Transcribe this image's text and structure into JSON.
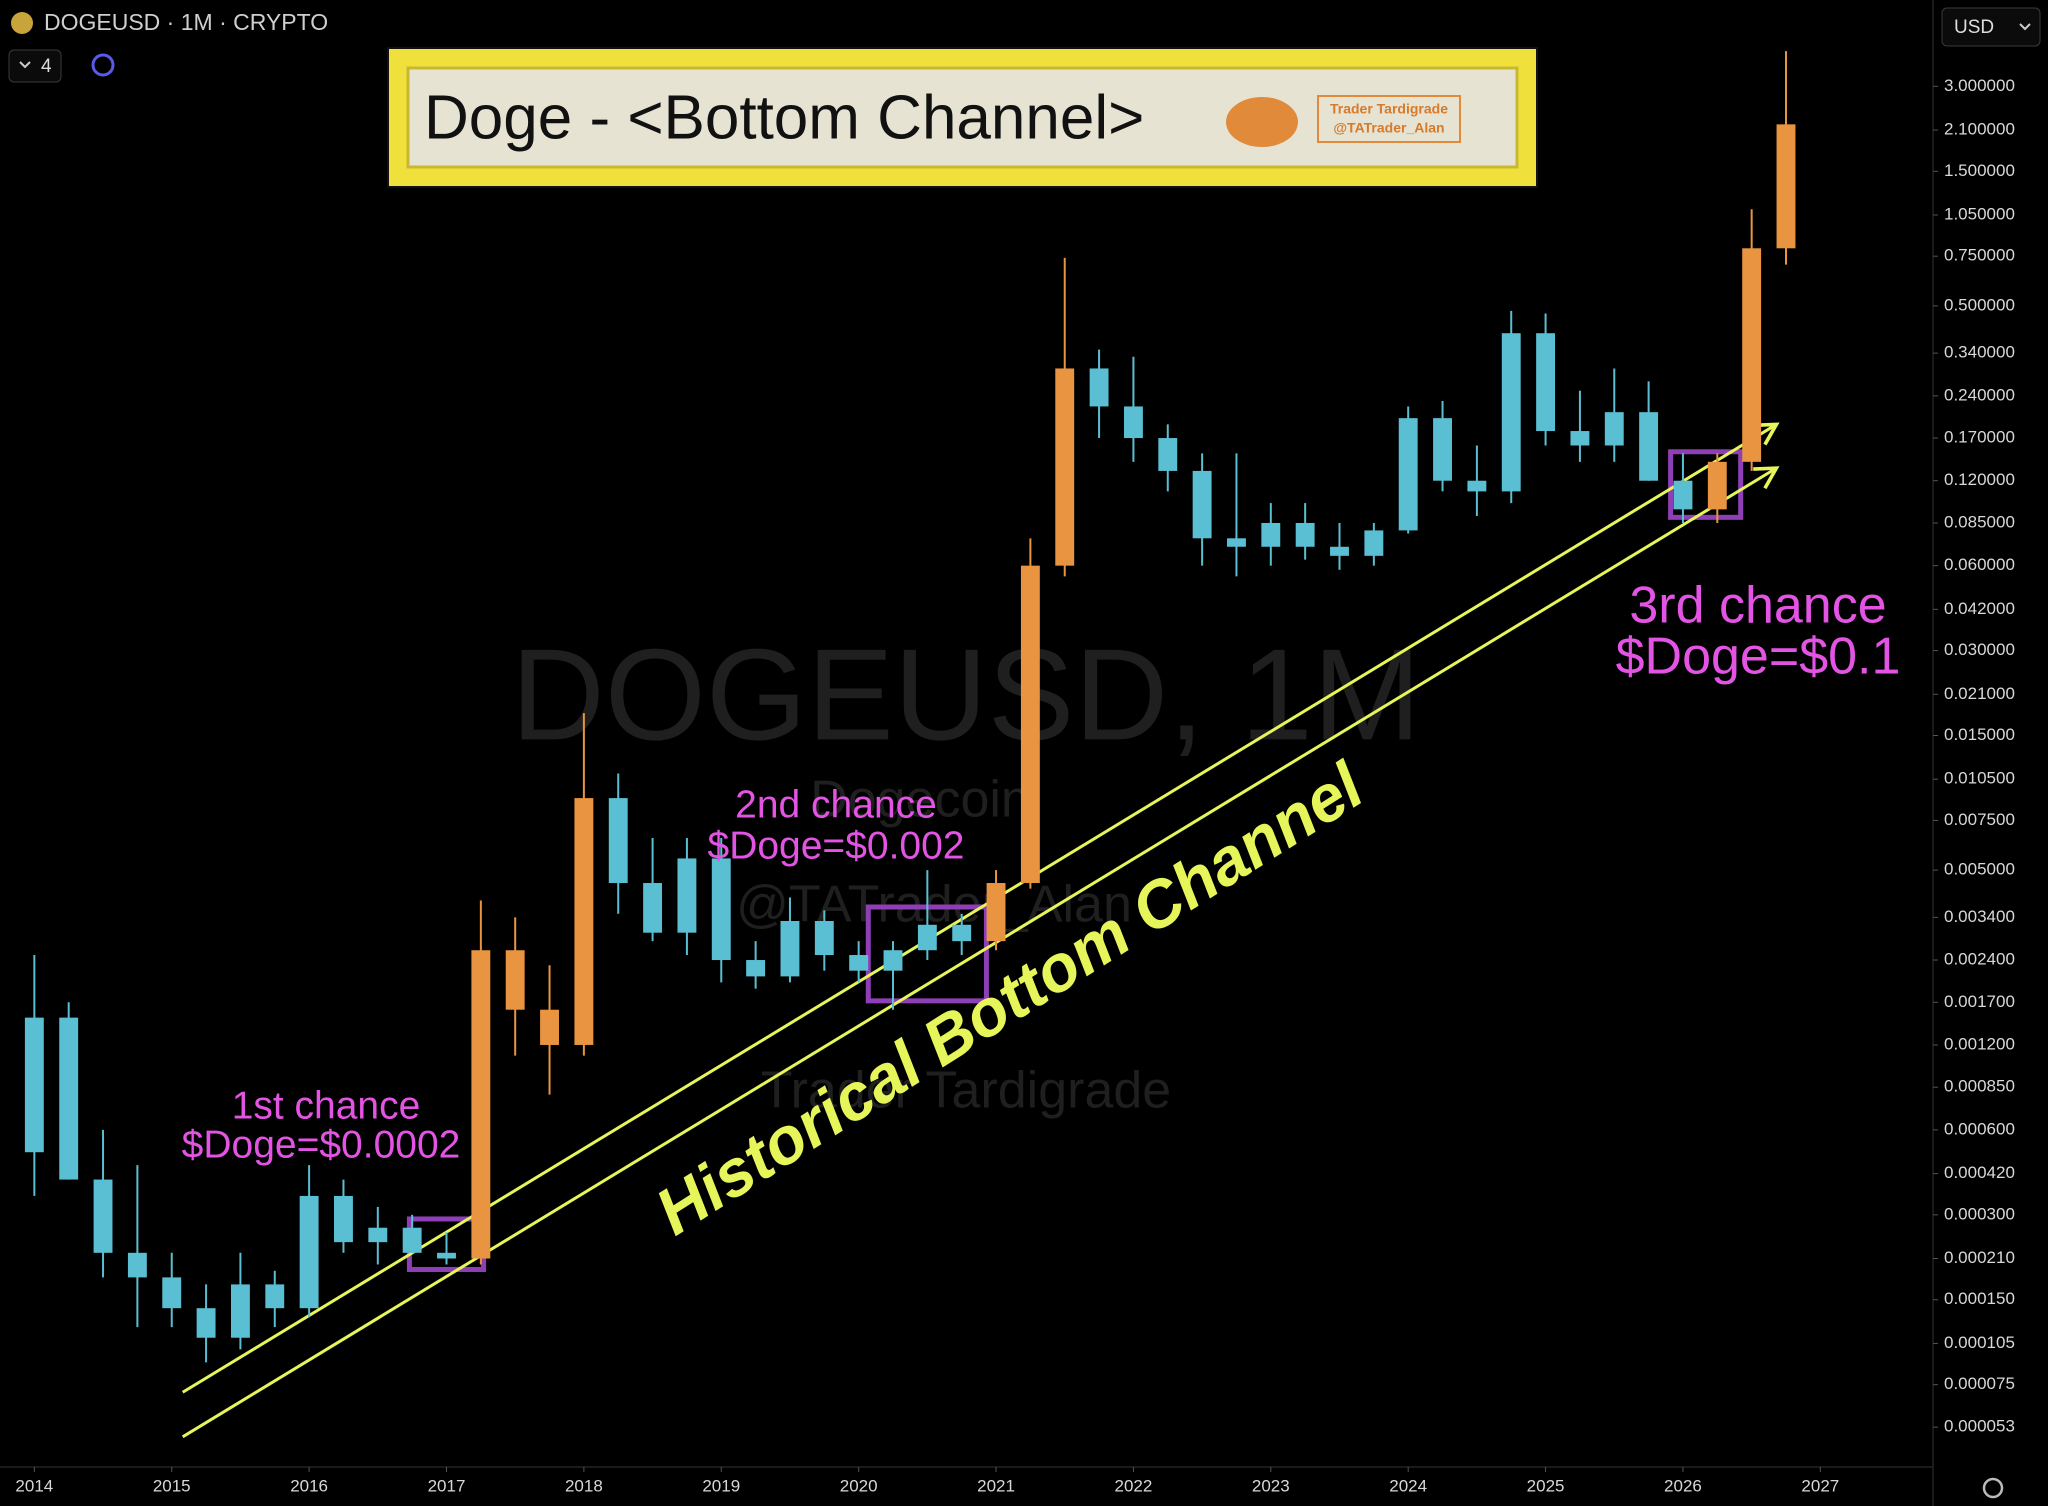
{
  "chart_data": {
    "type": "candlestick",
    "title": "Doge - <Bottom Channel>",
    "symbol": "DOGEUSD · 1M · CRYPTO",
    "indicators": 4,
    "currency": "USD",
    "brand": [
      "Trader Tardigrade",
      "@TATrader_Alan"
    ],
    "watermark": [
      "DOGEUSD, 1M",
      "Dogecoin",
      "@TATrader_Alan",
      "Trader Tardigrade"
    ],
    "channel_label": "Historical Bottom Channel",
    "annotations": [
      {
        "text": [
          "1st chance",
          "$Doge=$0.0002"
        ]
      },
      {
        "text": [
          "2nd chance",
          "$Doge=$0.002"
        ]
      },
      {
        "text": [
          "3rd chance",
          "$Doge=$0.1"
        ]
      }
    ],
    "log_scale_y": true,
    "grid": false,
    "xlim": [
      2013.75,
      2027.82
    ],
    "ylim": [
      3.83e-05,
      6.07
    ],
    "xticks": [
      2014,
      2015,
      2016,
      2017,
      2018,
      2019,
      2020,
      2021,
      2022,
      2023,
      2024,
      2025,
      2026,
      2027
    ],
    "yticks": [
      {
        "value": 3,
        "label": "3.000000"
      },
      {
        "value": 2.1,
        "label": "2.100000"
      },
      {
        "value": 1.5,
        "label": "1.500000"
      },
      {
        "value": 1.05,
        "label": "1.050000"
      },
      {
        "value": 0.75,
        "label": "0.750000"
      },
      {
        "value": 0.5,
        "label": "0.500000"
      },
      {
        "value": 0.34,
        "label": "0.340000"
      },
      {
        "value": 0.24,
        "label": "0.240000"
      },
      {
        "value": 0.17,
        "label": "0.170000"
      },
      {
        "value": 0.12,
        "label": "0.120000"
      },
      {
        "value": 0.085,
        "label": "0.085000"
      },
      {
        "value": 0.06,
        "label": "0.060000"
      },
      {
        "value": 0.042,
        "label": "0.042000"
      },
      {
        "value": 0.03,
        "label": "0.030000"
      },
      {
        "value": 0.021,
        "label": "0.021000"
      },
      {
        "value": 0.015,
        "label": "0.015000"
      },
      {
        "value": 0.0105,
        "label": "0.010500"
      },
      {
        "value": 0.0075,
        "label": "0.007500"
      },
      {
        "value": 0.005,
        "label": "0.005000"
      },
      {
        "value": 0.0034,
        "label": "0.003400"
      },
      {
        "value": 0.0024,
        "label": "0.002400"
      },
      {
        "value": 0.0017,
        "label": "0.001700"
      },
      {
        "value": 0.0012,
        "label": "0.001200"
      },
      {
        "value": 0.00085,
        "label": "0.000850"
      },
      {
        "value": 0.0006,
        "label": "0.000600"
      },
      {
        "value": 0.00042,
        "label": "0.000420"
      },
      {
        "value": 0.0003,
        "label": "0.000300"
      },
      {
        "value": 0.00021,
        "label": "0.000210"
      },
      {
        "value": 0.00015,
        "label": "0.000150"
      },
      {
        "value": 0.000105,
        "label": "0.000105"
      },
      {
        "value": 7.5e-05,
        "label": "0.000075"
      },
      {
        "value": 5.3e-05,
        "label": "0.000053"
      }
    ],
    "x": [
      2014,
      2014.25,
      2014.5,
      2014.75,
      2015,
      2015.25,
      2015.5,
      2015.75,
      2016,
      2016.25,
      2016.5,
      2016.75,
      2017,
      2017.25,
      2017.5,
      2017.75,
      2018,
      2018.25,
      2018.5,
      2018.75,
      2019,
      2019.25,
      2019.5,
      2019.75,
      2020,
      2020.25,
      2020.5,
      2020.75,
      2021,
      2021.25,
      2021.5,
      2021.75,
      2022,
      2022.25,
      2022.5,
      2022.75,
      2023,
      2023.25,
      2023.5,
      2023.75,
      2024,
      2024.25,
      2024.5,
      2024.75,
      2025,
      2025.25,
      2025.5,
      2025.75,
      2026,
      2026.25,
      2026.5,
      2026.75
    ],
    "open": [
      0.0005,
      0.0015,
      0.0004,
      0.00022,
      0.00018,
      0.00014,
      0.00011,
      0.00017,
      0.00014,
      0.00035,
      0.00024,
      0.00027,
      0.00022,
      0.00021,
      0.0026,
      0.0016,
      0.0012,
      0.009,
      0.0045,
      0.003,
      0.0055,
      0.0024,
      0.0021,
      0.0033,
      0.0025,
      0.0022,
      0.0026,
      0.0032,
      0.0028,
      0.0045,
      0.06,
      0.3,
      0.22,
      0.17,
      0.13,
      0.075,
      0.07,
      0.085,
      0.07,
      0.065,
      0.08,
      0.2,
      0.12,
      0.11,
      0.4,
      0.18,
      0.16,
      0.21,
      0.12,
      0.095,
      0.14,
      0.8
    ],
    "high": [
      0.0025,
      0.0017,
      0.0006,
      0.00045,
      0.00022,
      0.00017,
      0.00022,
      0.00019,
      0.00045,
      0.0004,
      0.00032,
      0.0003,
      0.00026,
      0.0039,
      0.0034,
      0.0023,
      0.018,
      0.011,
      0.0065,
      0.0065,
      0.0065,
      0.0028,
      0.004,
      0.0036,
      0.0028,
      0.0028,
      0.005,
      0.0035,
      0.005,
      0.075,
      0.74,
      0.35,
      0.33,
      0.19,
      0.15,
      0.15,
      0.1,
      0.1,
      0.085,
      0.085,
      0.22,
      0.23,
      0.16,
      0.48,
      0.47,
      0.25,
      0.3,
      0.27,
      0.15,
      0.15,
      1.1,
      4.0
    ],
    "low": [
      0.00035,
      0.0004,
      0.00018,
      0.00012,
      0.00012,
      9e-05,
      0.0001,
      0.00012,
      0.00013,
      0.00022,
      0.0002,
      0.00022,
      0.0002,
      0.0002,
      0.0011,
      0.0008,
      0.0011,
      0.0035,
      0.0028,
      0.0025,
      0.002,
      0.0019,
      0.002,
      0.0022,
      0.002,
      0.0016,
      0.0024,
      0.0025,
      0.0026,
      0.0043,
      0.055,
      0.17,
      0.14,
      0.11,
      0.06,
      0.055,
      0.06,
      0.063,
      0.058,
      0.06,
      0.078,
      0.11,
      0.09,
      0.1,
      0.16,
      0.14,
      0.14,
      0.12,
      0.085,
      0.085,
      0.13,
      0.7
    ],
    "close": [
      0.0015,
      0.0004,
      0.00022,
      0.00018,
      0.00014,
      0.00011,
      0.00017,
      0.00014,
      0.00035,
      0.00024,
      0.00027,
      0.00022,
      0.00021,
      0.0026,
      0.0016,
      0.0012,
      0.009,
      0.0045,
      0.003,
      0.0055,
      0.0024,
      0.0021,
      0.0033,
      0.0025,
      0.0022,
      0.0026,
      0.0032,
      0.0028,
      0.0045,
      0.06,
      0.3,
      0.22,
      0.17,
      0.13,
      0.075,
      0.07,
      0.085,
      0.07,
      0.065,
      0.08,
      0.2,
      0.12,
      0.11,
      0.4,
      0.18,
      0.16,
      0.21,
      0.12,
      0.095,
      0.14,
      0.8,
      2.2
    ],
    "colors": [
      "#5bbfd3",
      "#5bbfd3",
      "#5bbfd3",
      "#5bbfd3",
      "#5bbfd3",
      "#5bbfd3",
      "#5bbfd3",
      "#5bbfd3",
      "#5bbfd3",
      "#5bbfd3",
      "#5bbfd3",
      "#5bbfd3",
      "#5bbfd3",
      "#e89440",
      "#e89440",
      "#e89440",
      "#e89440",
      "#5bbfd3",
      "#5bbfd3",
      "#5bbfd3",
      "#5bbfd3",
      "#5bbfd3",
      "#5bbfd3",
      "#5bbfd3",
      "#5bbfd3",
      "#5bbfd3",
      "#5bbfd3",
      "#5bbfd3",
      "#e89440",
      "#e89440",
      "#e89440",
      "#5bbfd3",
      "#5bbfd3",
      "#5bbfd3",
      "#5bbfd3",
      "#5bbfd3",
      "#5bbfd3",
      "#5bbfd3",
      "#5bbfd3",
      "#5bbfd3",
      "#5bbfd3",
      "#5bbfd3",
      "#5bbfd3",
      "#5bbfd3",
      "#5bbfd3",
      "#5bbfd3",
      "#5bbfd3",
      "#5bbfd3",
      "#5bbfd3",
      "#e89440",
      "#e89440",
      "#e89440"
    ],
    "channel_lines": [
      {
        "color": "#e6f55a",
        "x": [
          2015.08,
          2026.68
        ],
        "y": [
          7.05e-05,
          0.19
        ]
      },
      {
        "color": "#e6f55a",
        "x": [
          2015.08,
          2026.68
        ],
        "y": [
          4.9e-05,
          0.133
        ]
      }
    ],
    "highlight_boxes": [
      {
        "color": "#8e3fb5",
        "x": [
          2016.73,
          2017.27
        ],
        "y": [
          0.000192,
          0.00029
        ]
      },
      {
        "color": "#8e3fb5",
        "x": [
          2020.07,
          2020.93
        ],
        "y": [
          0.00172,
          0.0037
        ]
      },
      {
        "color": "#8e3fb5",
        "x": [
          2025.91,
          2026.42
        ],
        "y": [
          0.089,
          0.152
        ]
      }
    ]
  }
}
